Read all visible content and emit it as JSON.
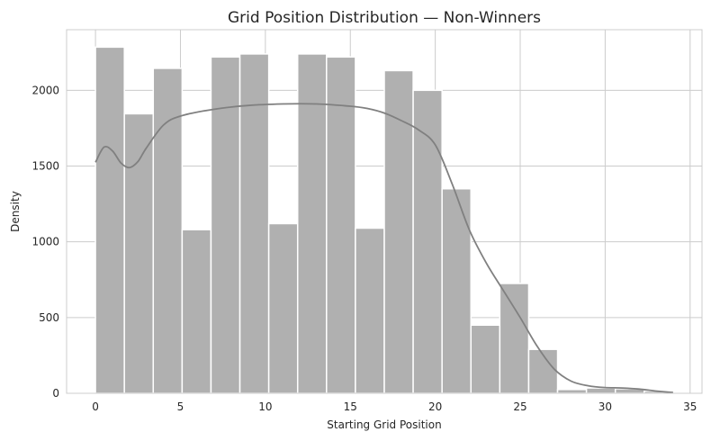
{
  "chart_data": {
    "type": "bar",
    "title": "Grid Position Distribution — Non-Winners",
    "xlabel": "Starting Grid Position",
    "ylabel": "Density",
    "xlim": [
      -1.7,
      35.7
    ],
    "ylim": [
      0,
      2400
    ],
    "x_ticks": [
      0,
      5,
      10,
      15,
      20,
      25,
      30,
      35
    ],
    "y_ticks": [
      0,
      500,
      1000,
      1500,
      2000
    ],
    "grid": true,
    "bins": {
      "edges": [
        0,
        1.7,
        3.4,
        5.1,
        6.8,
        8.5,
        10.2,
        11.9,
        13.6,
        15.3,
        17.0,
        18.7,
        20.4,
        22.1,
        23.8,
        25.5,
        27.2,
        28.9,
        30.6,
        32.3,
        34.0
      ],
      "values": [
        2285,
        1845,
        2145,
        1080,
        2220,
        2240,
        1120,
        2240,
        2220,
        1090,
        2130,
        2000,
        1350,
        450,
        725,
        290,
        25,
        35,
        30,
        15
      ]
    },
    "kde": {
      "name": "",
      "x": [
        0,
        0.5,
        1,
        1.5,
        2,
        2.5,
        3,
        4,
        5,
        7,
        9,
        11,
        13,
        15,
        16,
        17,
        18,
        19,
        20,
        21,
        22,
        23,
        24,
        25,
        26,
        27,
        28,
        29,
        30,
        31,
        32,
        33,
        34
      ],
      "y": [
        1525,
        1625,
        1600,
        1520,
        1490,
        1530,
        1620,
        1770,
        1830,
        1875,
        1900,
        1910,
        1910,
        1895,
        1880,
        1850,
        1800,
        1740,
        1640,
        1380,
        1080,
        860,
        680,
        500,
        310,
        160,
        80,
        50,
        38,
        35,
        28,
        15,
        5
      ]
    }
  }
}
